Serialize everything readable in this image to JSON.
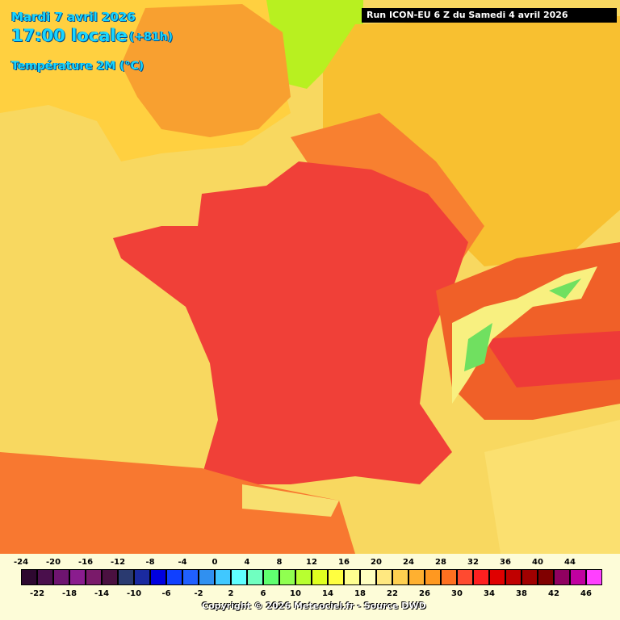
{
  "header": {
    "date": "Mardi 7 avril 2026",
    "time": "17:00 locale",
    "lead": "(+81h)",
    "parameter": "Température 2M (°C)",
    "run": "Run ICON-EU 6 Z du Samedi 4 avril 2026"
  },
  "colorbar": {
    "values": [
      -24,
      -22,
      -20,
      -18,
      -16,
      -14,
      -12,
      -10,
      -8,
      -6,
      -4,
      -2,
      0,
      2,
      4,
      6,
      8,
      10,
      12,
      14,
      16,
      18,
      20,
      22,
      24,
      26,
      28,
      30,
      32,
      34,
      36,
      38,
      40,
      42,
      44,
      46
    ],
    "colors": [
      "#2e0830",
      "#4a0f4c",
      "#6e1470",
      "#8a1c8e",
      "#7a1a6a",
      "#4a1040",
      "#2a3a70",
      "#1a2aa0",
      "#0000e0",
      "#1040ff",
      "#2060ff",
      "#3090f0",
      "#40c8ff",
      "#60ffff",
      "#70ffc0",
      "#60ff70",
      "#90ff50",
      "#b8ff30",
      "#e0ff20",
      "#ffff40",
      "#ffff90",
      "#ffffc0",
      "#ffe880",
      "#ffd050",
      "#ffb030",
      "#ff9820",
      "#ff7020",
      "#ff4a30",
      "#ff2020",
      "#e00000",
      "#c00000",
      "#a00000",
      "#800000",
      "#900060",
      "#c000a0",
      "#ff40ff"
    ]
  },
  "footer": {
    "copyright": "Copyright © 2026 Meteociel.fr - Source DWD"
  }
}
